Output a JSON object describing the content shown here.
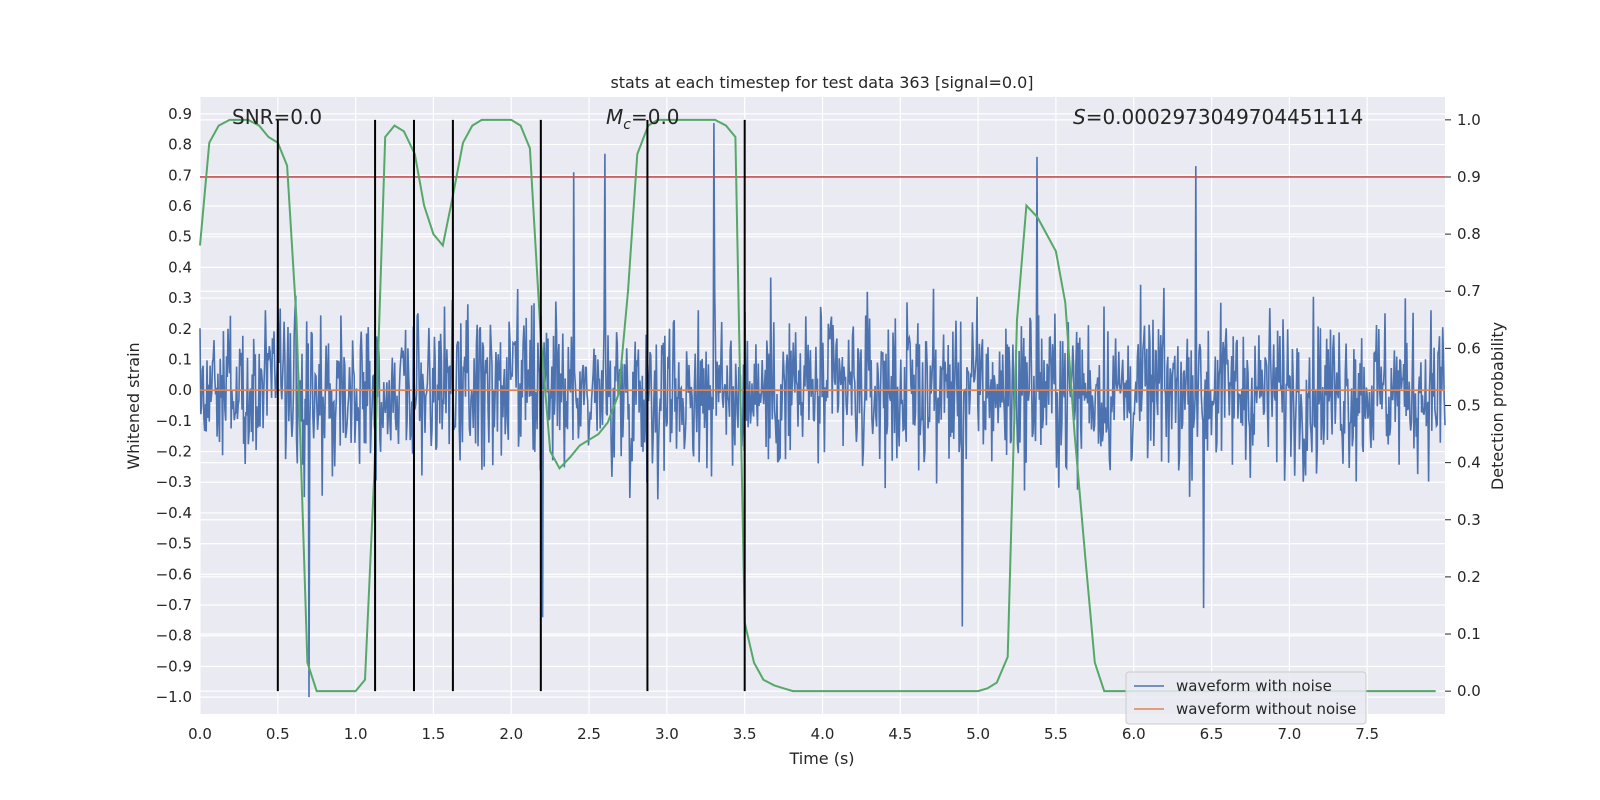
{
  "chart_data": {
    "type": "line",
    "title": "stats at each timestep for test data 363 [signal=0.0]",
    "xlabel": "Time (s)",
    "ylabel": "Whitened strain",
    "y2label": "Detection probability",
    "xlim": [
      0.0,
      8.0
    ],
    "ylim": [
      -1.055,
      0.955
    ],
    "y2lim": [
      -0.04,
      1.04
    ],
    "xticks": [
      0.0,
      0.5,
      1.0,
      1.5,
      2.0,
      2.5,
      3.0,
      3.5,
      4.0,
      4.5,
      5.0,
      5.5,
      6.0,
      6.5,
      7.0,
      7.5
    ],
    "xtick_labels": [
      "0.0",
      "0.5",
      "1.0",
      "1.5",
      "2.0",
      "2.5",
      "3.0",
      "3.5",
      "4.0",
      "4.5",
      "5.0",
      "5.5",
      "6.0",
      "6.5",
      "7.0",
      "7.5"
    ],
    "yticks": [
      -1.0,
      -0.9,
      -0.8,
      -0.7,
      -0.6,
      -0.5,
      -0.4,
      -0.3,
      -0.2,
      -0.1,
      0.0,
      0.1,
      0.2,
      0.3,
      0.4,
      0.5,
      0.6,
      0.7,
      0.8,
      0.9
    ],
    "ytick_labels": [
      "−1.0",
      "−0.9",
      "−0.8",
      "−0.7",
      "−0.6",
      "−0.5",
      "−0.4",
      "−0.3",
      "−0.2",
      "−0.1",
      "0.0",
      "0.1",
      "0.2",
      "0.3",
      "0.4",
      "0.5",
      "0.6",
      "0.7",
      "0.8",
      "0.9"
    ],
    "y2ticks": [
      0.0,
      0.1,
      0.2,
      0.3,
      0.4,
      0.5,
      0.6,
      0.7,
      0.8,
      0.9,
      1.0
    ],
    "y2tick_labels": [
      "0.0",
      "0.1",
      "0.2",
      "0.3",
      "0.4",
      "0.5",
      "0.6",
      "0.7",
      "0.8",
      "0.9",
      "1.0"
    ],
    "annotations": {
      "snr": "SNR=0.0",
      "mc_symbol": "M",
      "mc_subscript": "c",
      "mc_value": "=0.0",
      "s_symbol": "S",
      "s_value": "=0.0002973049704451114"
    },
    "threshold": {
      "value": 0.9,
      "axis": "right",
      "color": "#c44e52"
    },
    "vertical_lines": [
      0.5,
      1.125,
      1.375,
      1.625,
      2.19,
      2.875,
      3.5
    ],
    "series": [
      {
        "name": "waveform with noise",
        "color": "#4c72b0",
        "axis": "left",
        "kind": "noise",
        "typical_amplitude": 0.27,
        "peaks": [
          {
            "x": 0.7,
            "y": -1.0
          },
          {
            "x": 0.78,
            "y": -0.03
          },
          {
            "x": 2.2,
            "y": -0.74
          },
          {
            "x": 2.4,
            "y": 0.71
          },
          {
            "x": 2.6,
            "y": 0.77
          },
          {
            "x": 3.3,
            "y": 0.87
          },
          {
            "x": 4.9,
            "y": -0.77
          },
          {
            "x": 5.38,
            "y": 0.76
          },
          {
            "x": 6.4,
            "y": 0.73
          },
          {
            "x": 6.45,
            "y": -0.71
          }
        ]
      },
      {
        "name": "waveform without noise",
        "color": "#dd8452",
        "axis": "left",
        "x": [
          0.0,
          8.0
        ],
        "y": [
          0.0,
          0.0
        ]
      },
      {
        "name": "Detection probability",
        "color": "#55a868",
        "axis": "right",
        "x": [
          0.0,
          0.06,
          0.12,
          0.19,
          0.25,
          0.31,
          0.38,
          0.44,
          0.5,
          0.56,
          0.62,
          0.69,
          0.75,
          0.81,
          0.88,
          0.94,
          1.0,
          1.06,
          1.12,
          1.19,
          1.25,
          1.31,
          1.38,
          1.44,
          1.5,
          1.56,
          1.62,
          1.69,
          1.75,
          1.81,
          1.88,
          1.94,
          2.0,
          2.06,
          2.12,
          2.19,
          2.25,
          2.31,
          2.38,
          2.44,
          2.5,
          2.56,
          2.62,
          2.69,
          2.75,
          2.81,
          2.88,
          2.94,
          3.0,
          3.06,
          3.12,
          3.19,
          3.25,
          3.31,
          3.38,
          3.44,
          3.5,
          3.56,
          3.62,
          3.69,
          3.75,
          3.81,
          3.88,
          3.94,
          4.0,
          4.5,
          5.0,
          5.06,
          5.12,
          5.19,
          5.25,
          5.31,
          5.38,
          5.44,
          5.5,
          5.56,
          5.62,
          5.69,
          5.75,
          5.81,
          5.88,
          5.94,
          6.0,
          7.94
        ],
        "y": [
          0.78,
          0.96,
          0.99,
          1.0,
          1.0,
          1.0,
          0.99,
          0.97,
          0.96,
          0.92,
          0.65,
          0.05,
          0.0,
          0.0,
          0.0,
          0.0,
          0.0,
          0.02,
          0.38,
          0.97,
          0.99,
          0.98,
          0.94,
          0.85,
          0.8,
          0.78,
          0.86,
          0.96,
          0.99,
          1.0,
          1.0,
          1.0,
          1.0,
          0.99,
          0.95,
          0.62,
          0.42,
          0.39,
          0.41,
          0.43,
          0.44,
          0.45,
          0.47,
          0.52,
          0.7,
          0.94,
          0.99,
          1.0,
          1.0,
          1.0,
          1.0,
          1.0,
          1.0,
          1.0,
          0.99,
          0.97,
          0.12,
          0.05,
          0.02,
          0.01,
          0.005,
          0.0,
          0.0,
          0.0,
          0.0,
          0.0,
          0.0,
          0.005,
          0.015,
          0.06,
          0.65,
          0.85,
          0.83,
          0.8,
          0.77,
          0.68,
          0.45,
          0.23,
          0.05,
          0.0,
          0.0,
          0.0,
          0.0,
          0.0
        ]
      }
    ],
    "legend": {
      "position": "lower-right",
      "entries": [
        "waveform with noise",
        "waveform without noise"
      ]
    }
  }
}
